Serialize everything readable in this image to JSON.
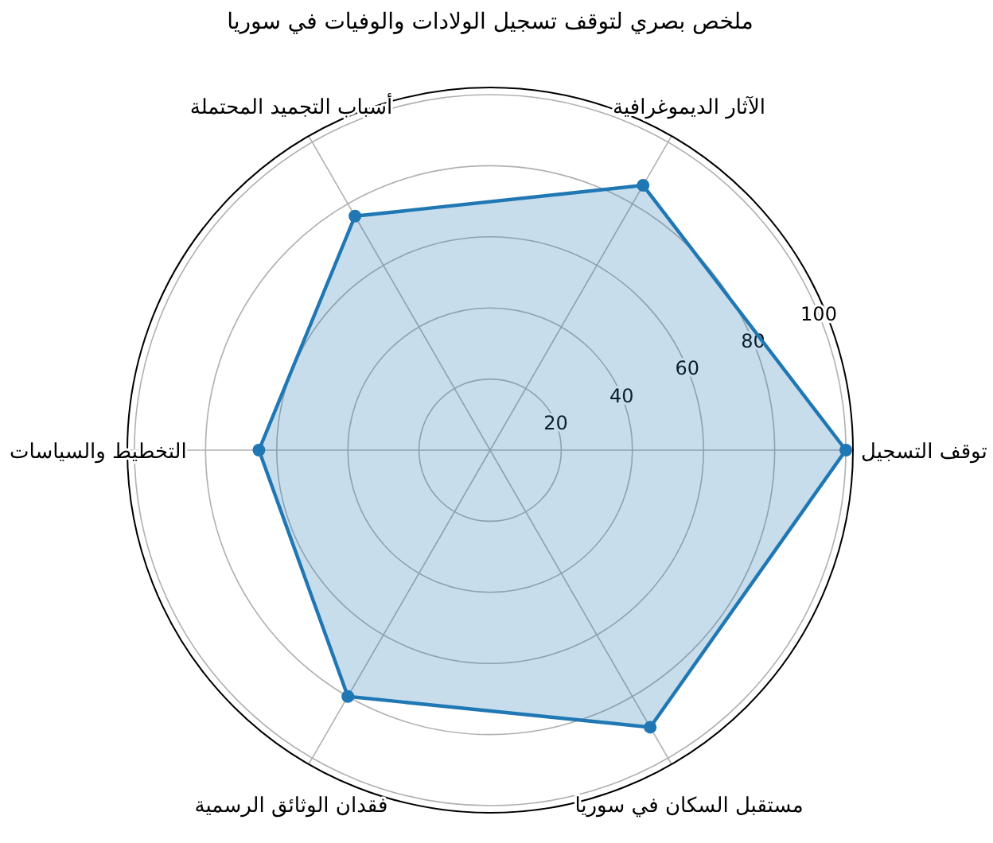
{
  "chart_data": {
    "type": "radar",
    "title": "ملخص بصري لتوقف تسجيل الولادات والوفيات في سوريا",
    "categories": [
      "الآثار الديموغرافية",
      "توقف التسجيل",
      "مستقبل السكان في سوريا",
      "فقدان الوثائق الرسمية",
      "التخطيط والسياسات",
      "أسباب التجميد المحتملة"
    ],
    "series": [
      {
        "color": "#1f77b4",
        "values": [
          86,
          100,
          90,
          80,
          65,
          76
        ]
      }
    ],
    "ylim": [
      0,
      102
    ],
    "yticks": [
      20,
      40,
      60,
      80,
      100
    ],
    "grid": true,
    "marker": "circle"
  }
}
